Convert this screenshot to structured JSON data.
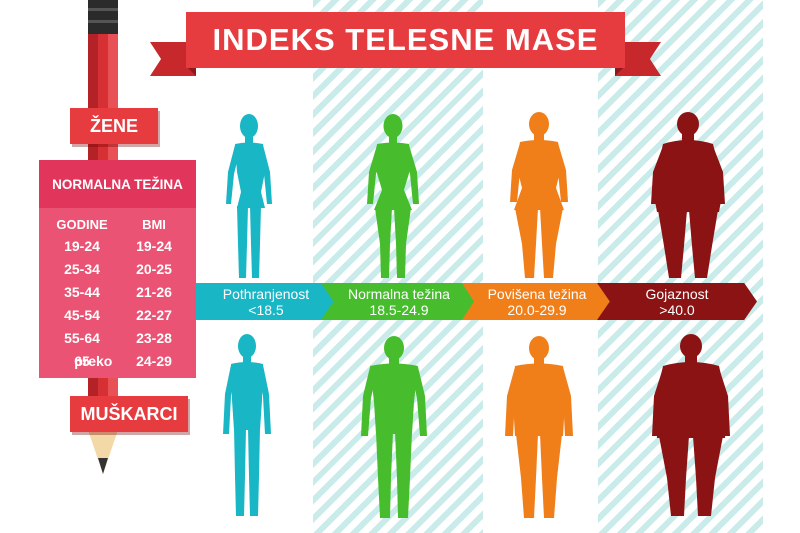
{
  "title": "INDEKS TELESNE MASE",
  "labels": {
    "women": "ŽENE",
    "men": "MUŠKARCI"
  },
  "table": {
    "heading": "NORMALNA TEŽINA",
    "col_age": "GODINE",
    "col_bmi": "BMI",
    "rows": [
      {
        "prefix": "",
        "age": "19-24",
        "bmi": "19-24"
      },
      {
        "prefix": "",
        "age": "25-34",
        "bmi": "20-25"
      },
      {
        "prefix": "",
        "age": "35-44",
        "bmi": "21-26"
      },
      {
        "prefix": "",
        "age": "45-54",
        "bmi": "22-27"
      },
      {
        "prefix": "",
        "age": "55-64",
        "bmi": "23-28"
      },
      {
        "prefix": "preko",
        "age": "65",
        "bmi": "24-29"
      }
    ]
  },
  "categories": [
    {
      "name": "Pothranjenost",
      "range": "<18.5",
      "color": "#19b6c6"
    },
    {
      "name": "Normalna težina",
      "range": "18.5-24.9",
      "color": "#47bd2d"
    },
    {
      "name": "Povišena težina",
      "range": "20.0-29.9",
      "color": "#f07f1a"
    },
    {
      "name": "Gojaznost",
      "range": ">40.0",
      "color": "#8b1314"
    }
  ]
}
